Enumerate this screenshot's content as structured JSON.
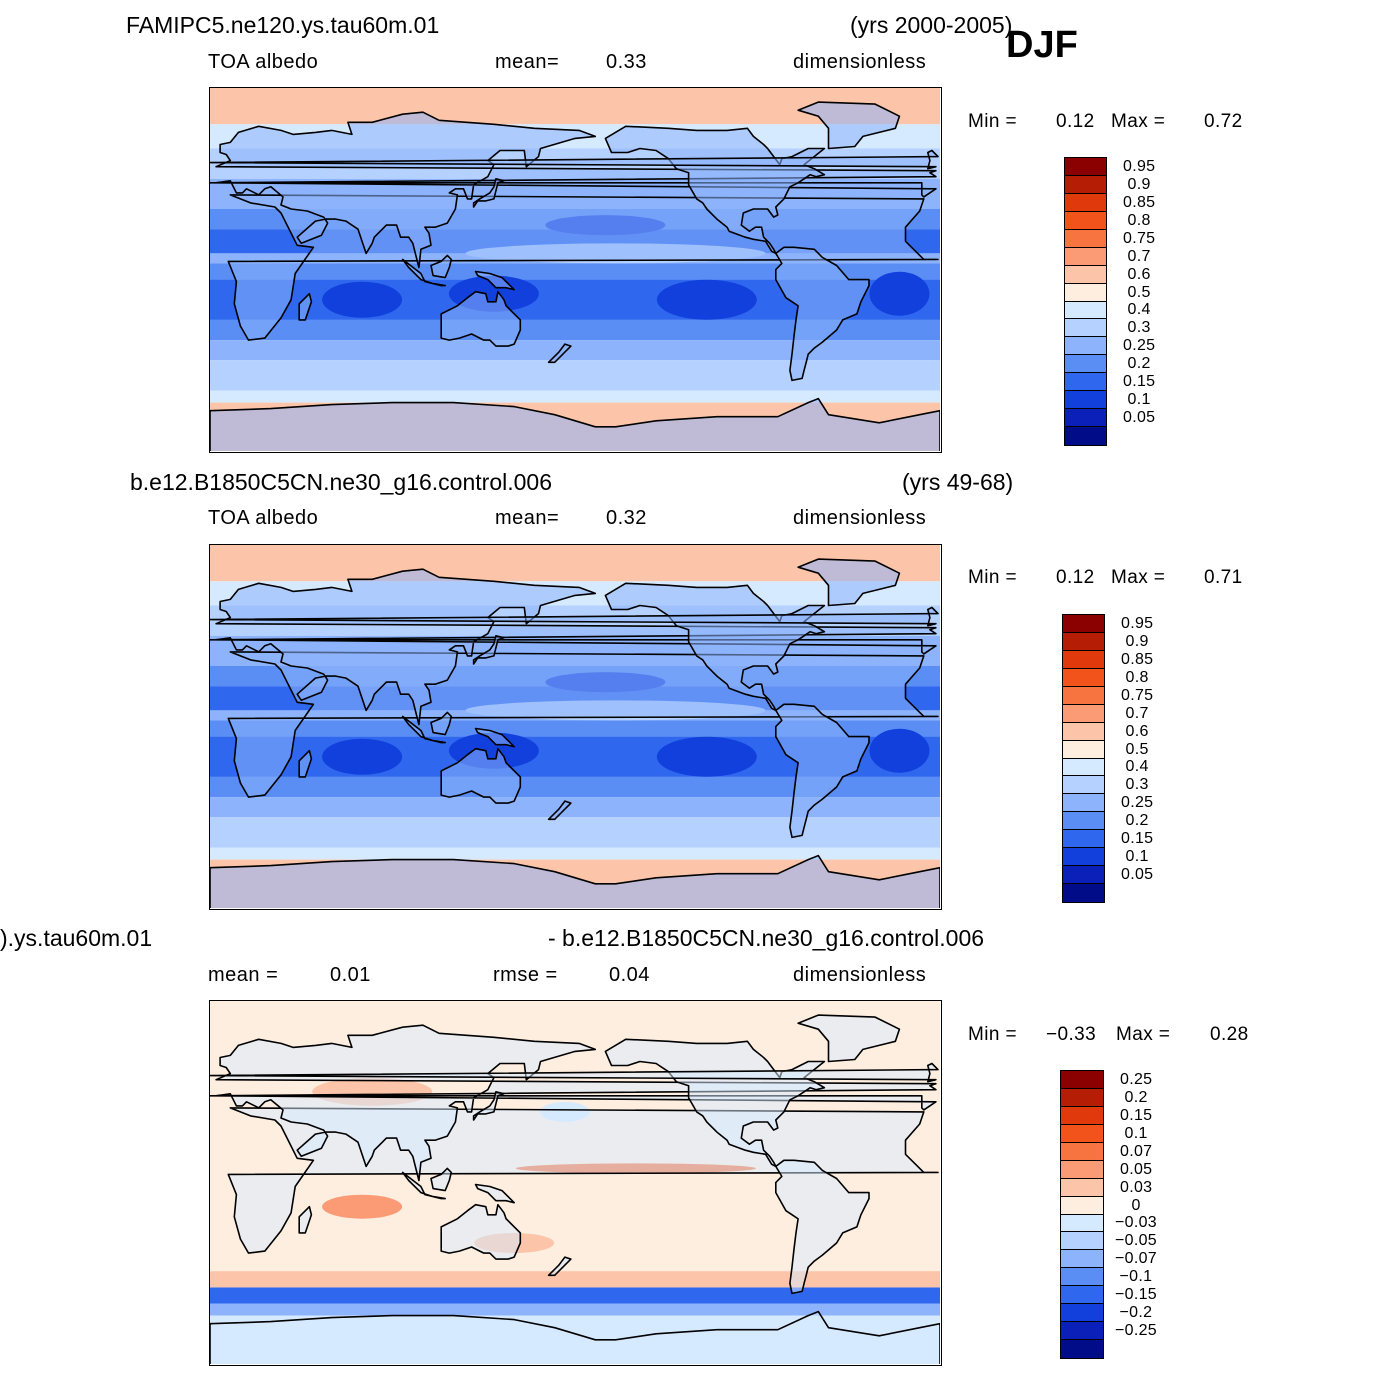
{
  "season": "DJF",
  "panels": [
    {
      "id": "model",
      "case_title": "FAMIPC5.ne120.ys.tau60m.01",
      "years": "(yrs 2000-2005)",
      "variable": "TOA  albedo",
      "stat1_label": "mean=",
      "stat1_value": "0.33",
      "units": "dimensionless",
      "min_label": "Min  =",
      "min_value": "0.12",
      "max_label": "Max  =",
      "max_value": "0.72",
      "levels": [
        "0.95",
        "0.9",
        "0.85",
        "0.8",
        "0.75",
        "0.7",
        "0.6",
        "0.5",
        "0.4",
        "0.3",
        "0.25",
        "0.2",
        "0.15",
        "0.1",
        "0.05"
      ],
      "colors": [
        "#8b0000",
        "#b51e05",
        "#e03a0c",
        "#f2531b",
        "#f7733f",
        "#fa9b75",
        "#fcc4a8",
        "#feeee0",
        "#d6eaff",
        "#b4d1ff",
        "#8cb3fb",
        "#5a8ef5",
        "#2f68ef",
        "#1240dd",
        "#0a20b9",
        "#000c88"
      ]
    },
    {
      "id": "control",
      "case_title": "b.e12.B1850C5CN.ne30_g16.control.006",
      "years": "(yrs 49-68)",
      "variable": "TOA  albedo",
      "stat1_label": "mean=",
      "stat1_value": "0.32",
      "units": "dimensionless",
      "min_label": "Min  =",
      "min_value": "0.12",
      "max_label": "Max  =",
      "max_value": "0.71",
      "levels": [
        "0.95",
        "0.9",
        "0.85",
        "0.8",
        "0.75",
        "0.7",
        "0.6",
        "0.5",
        "0.4",
        "0.3",
        "0.25",
        "0.2",
        "0.15",
        "0.1",
        "0.05"
      ],
      "colors": [
        "#8b0000",
        "#b51e05",
        "#e03a0c",
        "#f2531b",
        "#f7733f",
        "#fa9b75",
        "#fcc4a8",
        "#feeee0",
        "#d6eaff",
        "#b4d1ff",
        "#8cb3fb",
        "#5a8ef5",
        "#2f68ef",
        "#1240dd",
        "#0a20b9",
        "#000c88"
      ]
    },
    {
      "id": "difference",
      "case_title_left": ").ys.tau60m.01",
      "case_title_right": "- b.e12.B1850C5CN.ne30_g16.control.006",
      "stat1_label": "mean  =",
      "stat1_value": "0.01",
      "stat2_label": "rmse  =",
      "stat2_value": "0.04",
      "units": "dimensionless",
      "min_label": "Min  =",
      "min_value": "−0.33",
      "max_label": "Max  =",
      "max_value": "0.28",
      "levels": [
        "0.25",
        "0.2",
        "0.15",
        "0.1",
        "0.07",
        "0.05",
        "0.03",
        "0",
        "−0.03",
        "−0.05",
        "−0.07",
        "−0.1",
        "−0.15",
        "−0.2",
        "−0.25"
      ],
      "colors": [
        "#8b0000",
        "#b51e05",
        "#e03a0c",
        "#f2531b",
        "#f7733f",
        "#fa9b75",
        "#fcc4a8",
        "#feeee0",
        "#d6eaff",
        "#b4d1ff",
        "#8cb3fb",
        "#5a8ef5",
        "#2f68ef",
        "#1240dd",
        "#0a20b9",
        "#000c88"
      ]
    }
  ]
}
